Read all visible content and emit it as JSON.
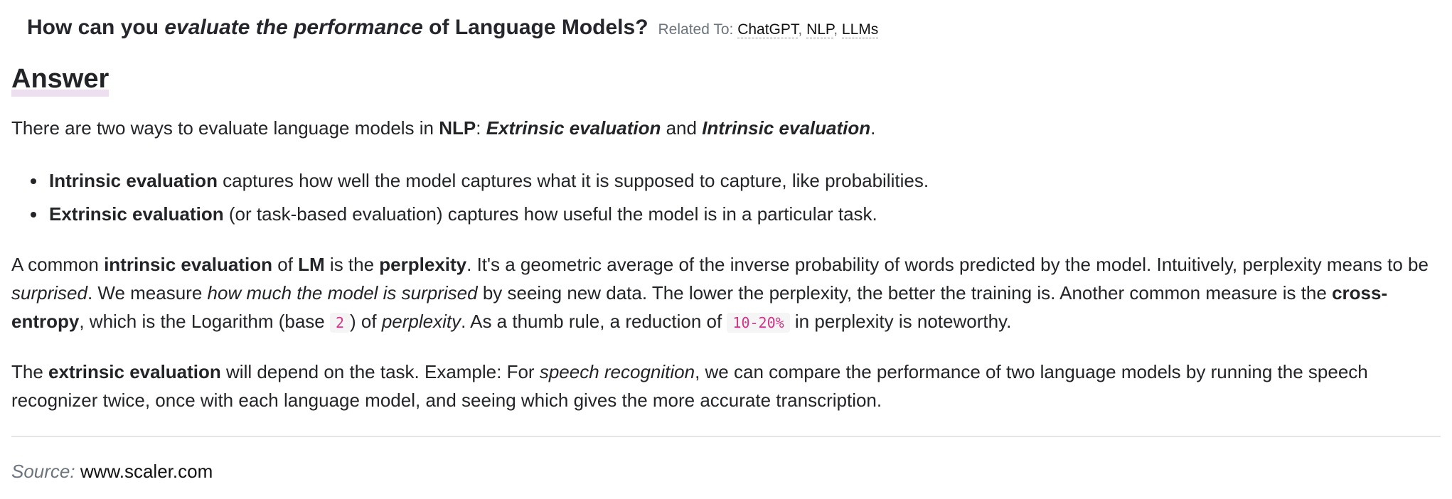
{
  "question": {
    "part1": "How can you ",
    "emphasis": "evaluate the performance",
    "part2": " of Language Models?",
    "related_label": "Related To: ",
    "tags": [
      "ChatGPT",
      "NLP",
      "LLMs"
    ],
    "tag_separator": ", "
  },
  "answer": {
    "heading": "Answer",
    "intro": {
      "t1": "There are two ways to evaluate language models in ",
      "nlp": "NLP",
      "t2": ": ",
      "extrinsic": "Extrinsic evaluation",
      "t3": " and ",
      "intrinsic": "Intrinsic evaluation",
      "t4": "."
    },
    "bullets": [
      {
        "term": "Intrinsic evaluation",
        "text": " captures how well the model captures what it is supposed to capture, like probabilities."
      },
      {
        "term": "Extrinsic evaluation",
        "text": " (or task-based evaluation) captures how useful the model is in a particular task."
      }
    ],
    "perplexity": {
      "t1": "A common ",
      "b1": "intrinsic evaluation",
      "t2": " of ",
      "b2": "LM",
      "t3": " is the ",
      "b3": "perplexity",
      "t4": ". It's a geometric average of the inverse probability of words predicted by the model. Intuitively, perplexity means to be ",
      "i1": "surprised",
      "t5": ". We measure ",
      "i2": "how much the model is surprised",
      "t6": " by seeing new data. The lower the perplexity, the better the training is. Another common measure is the ",
      "b4": "cross-entropy",
      "t7": ", which is the Logarithm (base ",
      "code1": "2",
      "t8": ") of ",
      "i3": "perplexity",
      "t9": ". As a thumb rule, a reduction of ",
      "code2": "10-20%",
      "t10": " in perplexity is noteworthy."
    },
    "extrinsic_para": {
      "t1": "The ",
      "b1": "extrinsic evaluation",
      "t2": " will depend on the task. Example: For ",
      "i1": "speech recognition",
      "t3": ", we can compare the performance of two language models by running the speech recognizer twice, once with each language model, and seeing which gives the more accurate transcription."
    }
  },
  "source": {
    "label": "Source:",
    "link": "www.scaler.com"
  }
}
